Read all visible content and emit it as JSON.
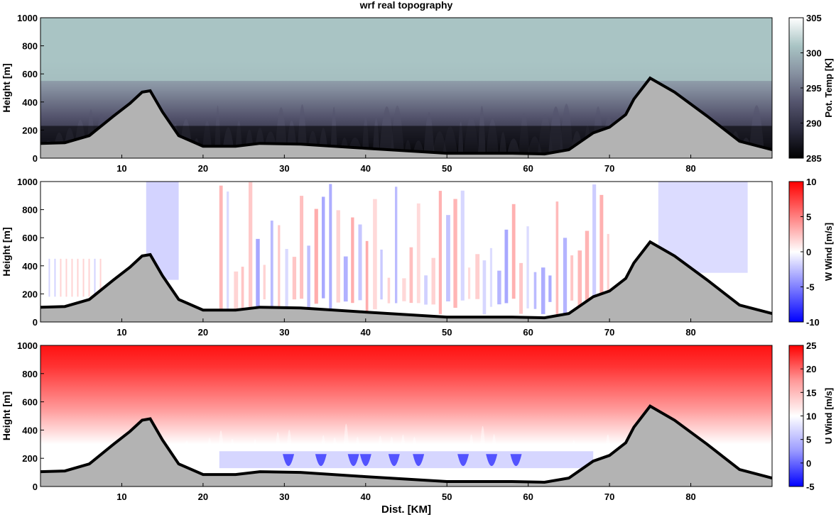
{
  "figure_title": "wrf real topography",
  "chart_data": {
    "type": "heatmap",
    "title": "wrf real topography",
    "xlabel": "Dist. [KM]",
    "xlim": [
      0,
      90
    ],
    "x_ticks": [
      10,
      20,
      30,
      40,
      50,
      60,
      70,
      80
    ],
    "terrain": {
      "x_km": [
        0,
        3,
        6,
        9,
        11,
        12.5,
        13.5,
        15,
        17,
        20,
        24,
        27,
        32,
        40,
        50,
        58,
        62,
        65,
        68,
        70,
        72,
        73,
        75,
        78,
        82,
        86,
        90
      ],
      "height_m": [
        105,
        110,
        160,
        300,
        390,
        470,
        480,
        330,
        160,
        85,
        85,
        105,
        100,
        70,
        35,
        35,
        30,
        60,
        180,
        220,
        310,
        420,
        570,
        470,
        300,
        120,
        60
      ]
    },
    "panels": [
      {
        "name": "potential-temperature",
        "ylabel": "Height [m]",
        "ylim": [
          0,
          1000
        ],
        "y_ticks": [
          0,
          200,
          400,
          600,
          800,
          1000
        ],
        "colorbar_label": "Pot. Temp [K]",
        "colorbar_range": [
          285,
          305
        ],
        "colorbar_ticks": [
          285,
          290,
          295,
          300,
          305
        ],
        "colormap": [
          "#000000",
          "#2a2a3c",
          "#55556e",
          "#8690a0",
          "#a9c4c4",
          "#ffffff"
        ]
      },
      {
        "name": "vertical-wind",
        "ylabel": "Height [m]",
        "ylim": [
          0,
          1000
        ],
        "y_ticks": [
          0,
          200,
          400,
          600,
          800,
          1000
        ],
        "colorbar_label": "W Wind [m/s]",
        "colorbar_range": [
          -10,
          10
        ],
        "colorbar_ticks": [
          -10,
          -5,
          0,
          5,
          10
        ],
        "colormap": [
          "#0000ff",
          "#8080ff",
          "#ffffff",
          "#ff8080",
          "#ff0000"
        ]
      },
      {
        "name": "horizontal-wind",
        "ylabel": "Height [m]",
        "ylim": [
          0,
          1000
        ],
        "y_ticks": [
          0,
          200,
          400,
          600,
          800,
          1000
        ],
        "colorbar_label": "U Wind [m/s]",
        "colorbar_range": [
          -5,
          25
        ],
        "colorbar_ticks": [
          -5,
          0,
          5,
          10,
          15,
          20,
          25
        ],
        "colormap": [
          "#0000ff",
          "#9999ff",
          "#ffffff",
          "#ff9999",
          "#ff0000"
        ]
      }
    ],
    "terrain_fill": "#b3b3b3",
    "terrain_outline": "#000000"
  }
}
